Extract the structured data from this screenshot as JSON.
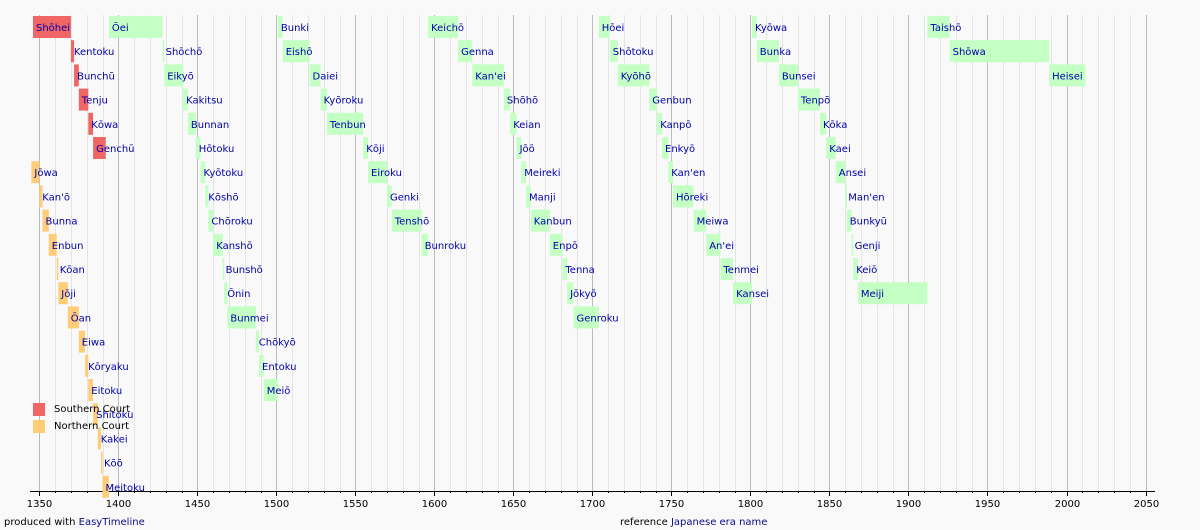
{
  "chart_data": {
    "type": "timeline",
    "title": "",
    "xlabel": "",
    "ylabel": "",
    "xlim": [
      1346,
      2056
    ],
    "x_ticks": [
      1350,
      1400,
      1450,
      1500,
      1550,
      1600,
      1650,
      1700,
      1750,
      1800,
      1850,
      1900,
      1950,
      2000,
      2050
    ],
    "minor_tick_step": 10,
    "grid": true,
    "colors": {
      "southern": "#f06664",
      "northern": "#ffcc77",
      "main": "#c4ffc4",
      "label": "#0000aa",
      "grid_minor": "#e4e4e4",
      "grid_major": "#bbbbbb"
    },
    "legend": [
      {
        "group": "southern",
        "label": "Southern Court"
      },
      {
        "group": "northern",
        "label": "Northern Court"
      }
    ],
    "eras": [
      {
        "name": "Shōhei",
        "start": 1346,
        "end": 1370,
        "row": 0,
        "group": "southern"
      },
      {
        "name": "Kentoku",
        "start": 1370,
        "end": 1372,
        "row": 1,
        "group": "southern"
      },
      {
        "name": "Bunchū",
        "start": 1372,
        "end": 1375,
        "row": 2,
        "group": "southern"
      },
      {
        "name": "Tenju",
        "start": 1375,
        "end": 1381,
        "row": 3,
        "group": "southern"
      },
      {
        "name": "Kōwa",
        "start": 1381,
        "end": 1384,
        "row": 4,
        "group": "southern"
      },
      {
        "name": "Genchū",
        "start": 1384,
        "end": 1392,
        "row": 5,
        "group": "southern"
      },
      {
        "name": "Jōwa",
        "start": 1345,
        "end": 1350,
        "row": 6,
        "group": "northern"
      },
      {
        "name": "Kan'ō",
        "start": 1350,
        "end": 1352,
        "row": 7,
        "group": "northern"
      },
      {
        "name": "Bunna",
        "start": 1352,
        "end": 1356,
        "row": 8,
        "group": "northern"
      },
      {
        "name": "Enbun",
        "start": 1356,
        "end": 1361,
        "row": 9,
        "group": "northern"
      },
      {
        "name": "Kōan",
        "start": 1361,
        "end": 1362,
        "row": 10,
        "group": "northern"
      },
      {
        "name": "Jōji",
        "start": 1362,
        "end": 1368,
        "row": 11,
        "group": "northern"
      },
      {
        "name": "Ōan",
        "start": 1368,
        "end": 1375,
        "row": 12,
        "group": "northern"
      },
      {
        "name": "Eiwa",
        "start": 1375,
        "end": 1379,
        "row": 13,
        "group": "northern"
      },
      {
        "name": "Kōryaku",
        "start": 1379,
        "end": 1381,
        "row": 14,
        "group": "northern"
      },
      {
        "name": "Eitoku",
        "start": 1381,
        "end": 1384,
        "row": 15,
        "group": "northern"
      },
      {
        "name": "Shitoku",
        "start": 1384,
        "end": 1387,
        "row": 16,
        "group": "northern"
      },
      {
        "name": "Kakei",
        "start": 1387,
        "end": 1389,
        "row": 17,
        "group": "northern"
      },
      {
        "name": "Kōō",
        "start": 1389,
        "end": 1390,
        "row": 18,
        "group": "northern"
      },
      {
        "name": "Meitoku",
        "start": 1390,
        "end": 1394,
        "row": 19,
        "group": "northern"
      },
      {
        "name": "Ōei",
        "start": 1394,
        "end": 1428,
        "row": 0,
        "group": "main"
      },
      {
        "name": "Shōchō",
        "start": 1428,
        "end": 1429,
        "row": 1,
        "group": "main"
      },
      {
        "name": "Eikyō",
        "start": 1429,
        "end": 1441,
        "row": 2,
        "group": "main"
      },
      {
        "name": "Kakitsu",
        "start": 1441,
        "end": 1444,
        "row": 3,
        "group": "main"
      },
      {
        "name": "Bunnan",
        "start": 1444,
        "end": 1449,
        "row": 4,
        "group": "main"
      },
      {
        "name": "Hōtoku",
        "start": 1449,
        "end": 1452,
        "row": 5,
        "group": "main"
      },
      {
        "name": "Kyōtoku",
        "start": 1452,
        "end": 1455,
        "row": 6,
        "group": "main"
      },
      {
        "name": "Kōshō",
        "start": 1455,
        "end": 1457,
        "row": 7,
        "group": "main"
      },
      {
        "name": "Chōroku",
        "start": 1457,
        "end": 1460,
        "row": 8,
        "group": "main"
      },
      {
        "name": "Kanshō",
        "start": 1460,
        "end": 1466,
        "row": 9,
        "group": "main"
      },
      {
        "name": "Bunshō",
        "start": 1466,
        "end": 1467,
        "row": 10,
        "group": "main"
      },
      {
        "name": "Ōnin",
        "start": 1467,
        "end": 1469,
        "row": 11,
        "group": "main"
      },
      {
        "name": "Bunmei",
        "start": 1469,
        "end": 1487,
        "row": 12,
        "group": "main"
      },
      {
        "name": "Chōkyō",
        "start": 1487,
        "end": 1489,
        "row": 13,
        "group": "main"
      },
      {
        "name": "Entoku",
        "start": 1489,
        "end": 1492,
        "row": 14,
        "group": "main"
      },
      {
        "name": "Meiō",
        "start": 1492,
        "end": 1501,
        "row": 15,
        "group": "main"
      },
      {
        "name": "Bunki",
        "start": 1501,
        "end": 1504,
        "row": 0,
        "group": "main"
      },
      {
        "name": "Eishō",
        "start": 1504,
        "end": 1521,
        "row": 1,
        "group": "main"
      },
      {
        "name": "Daiei",
        "start": 1521,
        "end": 1528,
        "row": 2,
        "group": "main"
      },
      {
        "name": "Kyōroku",
        "start": 1528,
        "end": 1532,
        "row": 3,
        "group": "main"
      },
      {
        "name": "Tenbun",
        "start": 1532,
        "end": 1555,
        "row": 4,
        "group": "main"
      },
      {
        "name": "Kōji",
        "start": 1555,
        "end": 1558,
        "row": 5,
        "group": "main"
      },
      {
        "name": "Eiroku",
        "start": 1558,
        "end": 1570,
        "row": 6,
        "group": "main"
      },
      {
        "name": "Genki",
        "start": 1570,
        "end": 1573,
        "row": 7,
        "group": "main"
      },
      {
        "name": "Tenshō",
        "start": 1573,
        "end": 1592,
        "row": 8,
        "group": "main"
      },
      {
        "name": "Bunroku",
        "start": 1592,
        "end": 1596,
        "row": 9,
        "group": "main"
      },
      {
        "name": "Keichō",
        "start": 1596,
        "end": 1615,
        "row": 0,
        "group": "main"
      },
      {
        "name": "Genna",
        "start": 1615,
        "end": 1624,
        "row": 1,
        "group": "main"
      },
      {
        "name": "Kan'ei",
        "start": 1624,
        "end": 1644,
        "row": 2,
        "group": "main"
      },
      {
        "name": "Shōhō",
        "start": 1644,
        "end": 1648,
        "row": 3,
        "group": "main"
      },
      {
        "name": "Keian",
        "start": 1648,
        "end": 1652,
        "row": 4,
        "group": "main"
      },
      {
        "name": "Jōō",
        "start": 1652,
        "end": 1655,
        "row": 5,
        "group": "main"
      },
      {
        "name": "Meireki",
        "start": 1655,
        "end": 1658,
        "row": 6,
        "group": "main"
      },
      {
        "name": "Manji",
        "start": 1658,
        "end": 1661,
        "row": 7,
        "group": "main"
      },
      {
        "name": "Kanbun",
        "start": 1661,
        "end": 1673,
        "row": 8,
        "group": "main"
      },
      {
        "name": "Enpō",
        "start": 1673,
        "end": 1681,
        "row": 9,
        "group": "main"
      },
      {
        "name": "Tenna",
        "start": 1681,
        "end": 1684,
        "row": 10,
        "group": "main"
      },
      {
        "name": "Jōkyō",
        "start": 1684,
        "end": 1688,
        "row": 11,
        "group": "main"
      },
      {
        "name": "Genroku",
        "start": 1688,
        "end": 1704,
        "row": 12,
        "group": "main"
      },
      {
        "name": "Hōei",
        "start": 1704,
        "end": 1711,
        "row": 0,
        "group": "main"
      },
      {
        "name": "Shōtoku",
        "start": 1711,
        "end": 1716,
        "row": 1,
        "group": "main"
      },
      {
        "name": "Kyōhō",
        "start": 1716,
        "end": 1736,
        "row": 2,
        "group": "main"
      },
      {
        "name": "Genbun",
        "start": 1736,
        "end": 1741,
        "row": 3,
        "group": "main"
      },
      {
        "name": "Kanpō",
        "start": 1741,
        "end": 1744,
        "row": 4,
        "group": "main"
      },
      {
        "name": "Enkyō",
        "start": 1744,
        "end": 1748,
        "row": 5,
        "group": "main"
      },
      {
        "name": "Kan'en",
        "start": 1748,
        "end": 1751,
        "row": 6,
        "group": "main"
      },
      {
        "name": "Hōreki",
        "start": 1751,
        "end": 1764,
        "row": 7,
        "group": "main"
      },
      {
        "name": "Meiwa",
        "start": 1764,
        "end": 1772,
        "row": 8,
        "group": "main"
      },
      {
        "name": "An'ei",
        "start": 1772,
        "end": 1781,
        "row": 9,
        "group": "main"
      },
      {
        "name": "Tenmei",
        "start": 1781,
        "end": 1789,
        "row": 10,
        "group": "main"
      },
      {
        "name": "Kansei",
        "start": 1789,
        "end": 1801,
        "row": 11,
        "group": "main"
      },
      {
        "name": "Kyōwa",
        "start": 1801,
        "end": 1804,
        "row": 0,
        "group": "main"
      },
      {
        "name": "Bunka",
        "start": 1804,
        "end": 1818,
        "row": 1,
        "group": "main"
      },
      {
        "name": "Bunsei",
        "start": 1818,
        "end": 1830,
        "row": 2,
        "group": "main"
      },
      {
        "name": "Tenpō",
        "start": 1830,
        "end": 1844,
        "row": 3,
        "group": "main"
      },
      {
        "name": "Kōka",
        "start": 1844,
        "end": 1848,
        "row": 4,
        "group": "main"
      },
      {
        "name": "Kaei",
        "start": 1848,
        "end": 1854,
        "row": 5,
        "group": "main"
      },
      {
        "name": "Ansei",
        "start": 1854,
        "end": 1860,
        "row": 6,
        "group": "main"
      },
      {
        "name": "Man'en",
        "start": 1860,
        "end": 1861,
        "row": 7,
        "group": "main"
      },
      {
        "name": "Bunkyū",
        "start": 1861,
        "end": 1864,
        "row": 8,
        "group": "main"
      },
      {
        "name": "Genji",
        "start": 1864,
        "end": 1865,
        "row": 9,
        "group": "main"
      },
      {
        "name": "Keiō",
        "start": 1865,
        "end": 1868,
        "row": 10,
        "group": "main"
      },
      {
        "name": "Meiji",
        "start": 1868,
        "end": 1912,
        "row": 11,
        "group": "main"
      },
      {
        "name": "Taishō",
        "start": 1912,
        "end": 1926,
        "row": 0,
        "group": "main"
      },
      {
        "name": "Shōwa",
        "start": 1926,
        "end": 1989,
        "row": 1,
        "group": "main"
      },
      {
        "name": "Heisei",
        "start": 1989,
        "end": 2012,
        "row": 2,
        "group": "main"
      }
    ]
  },
  "footer": {
    "produced_prefix": "produced with",
    "produced_link": "EasyTimeline",
    "reference_prefix": "reference",
    "reference_link": "Japanese era name"
  }
}
